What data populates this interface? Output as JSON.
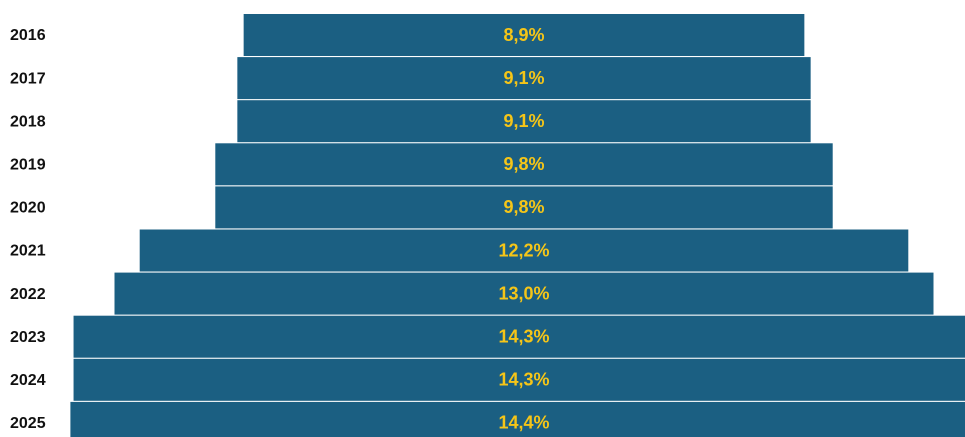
{
  "chart_data": {
    "type": "funnel",
    "categories": [
      "2016",
      "2017",
      "2018",
      "2019",
      "2020",
      "2021",
      "2022",
      "2023",
      "2024",
      "2025"
    ],
    "values": [
      8.9,
      9.1,
      9.1,
      9.8,
      9.8,
      12.2,
      13.0,
      14.3,
      14.3,
      14.4
    ],
    "value_labels": [
      "8,9%",
      "9,1%",
      "9,1%",
      "9,8%",
      "9,8%",
      "12,2%",
      "13,0%",
      "14,3%",
      "14,3%",
      "14,4%"
    ],
    "color": "#1b5f82",
    "label_color": "#f5c518"
  }
}
